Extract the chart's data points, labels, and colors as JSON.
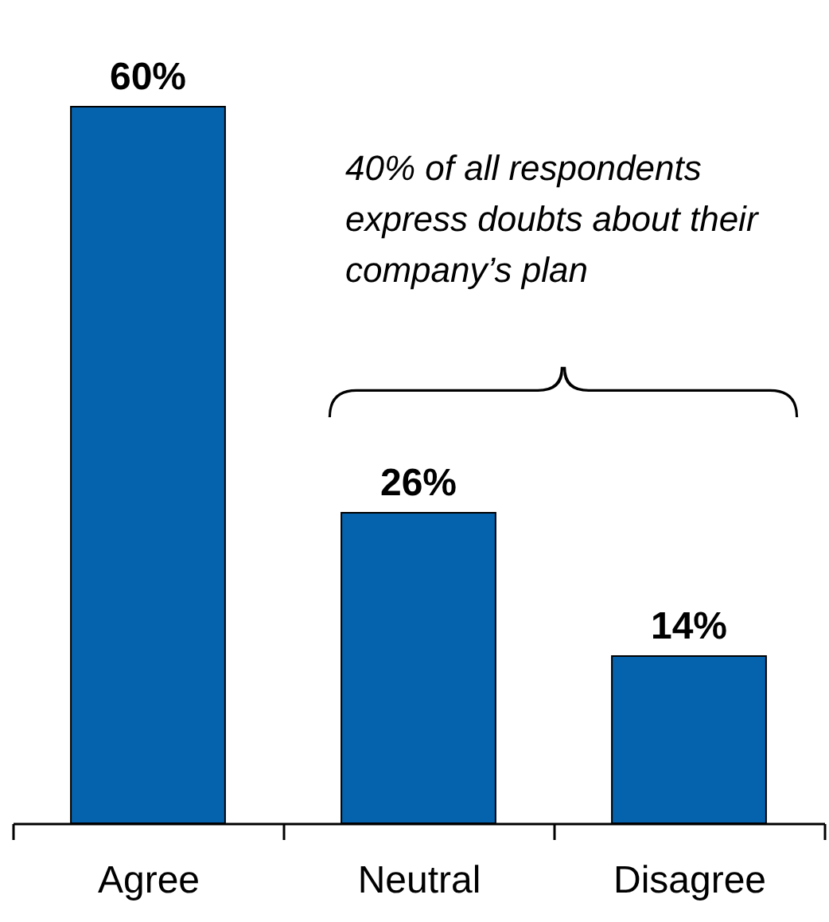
{
  "chart_data": {
    "type": "bar",
    "categories": [
      "Agree",
      "Neutral",
      "Disagree"
    ],
    "values": [
      60,
      26,
      14
    ],
    "color": "#0563ad",
    "data_labels": true,
    "value_labels": [
      "60%",
      "26%",
      "14%"
    ],
    "tick_labels": "x",
    "annotations": [
      "40% of all respondents express doubts about their company’s plan"
    ]
  }
}
